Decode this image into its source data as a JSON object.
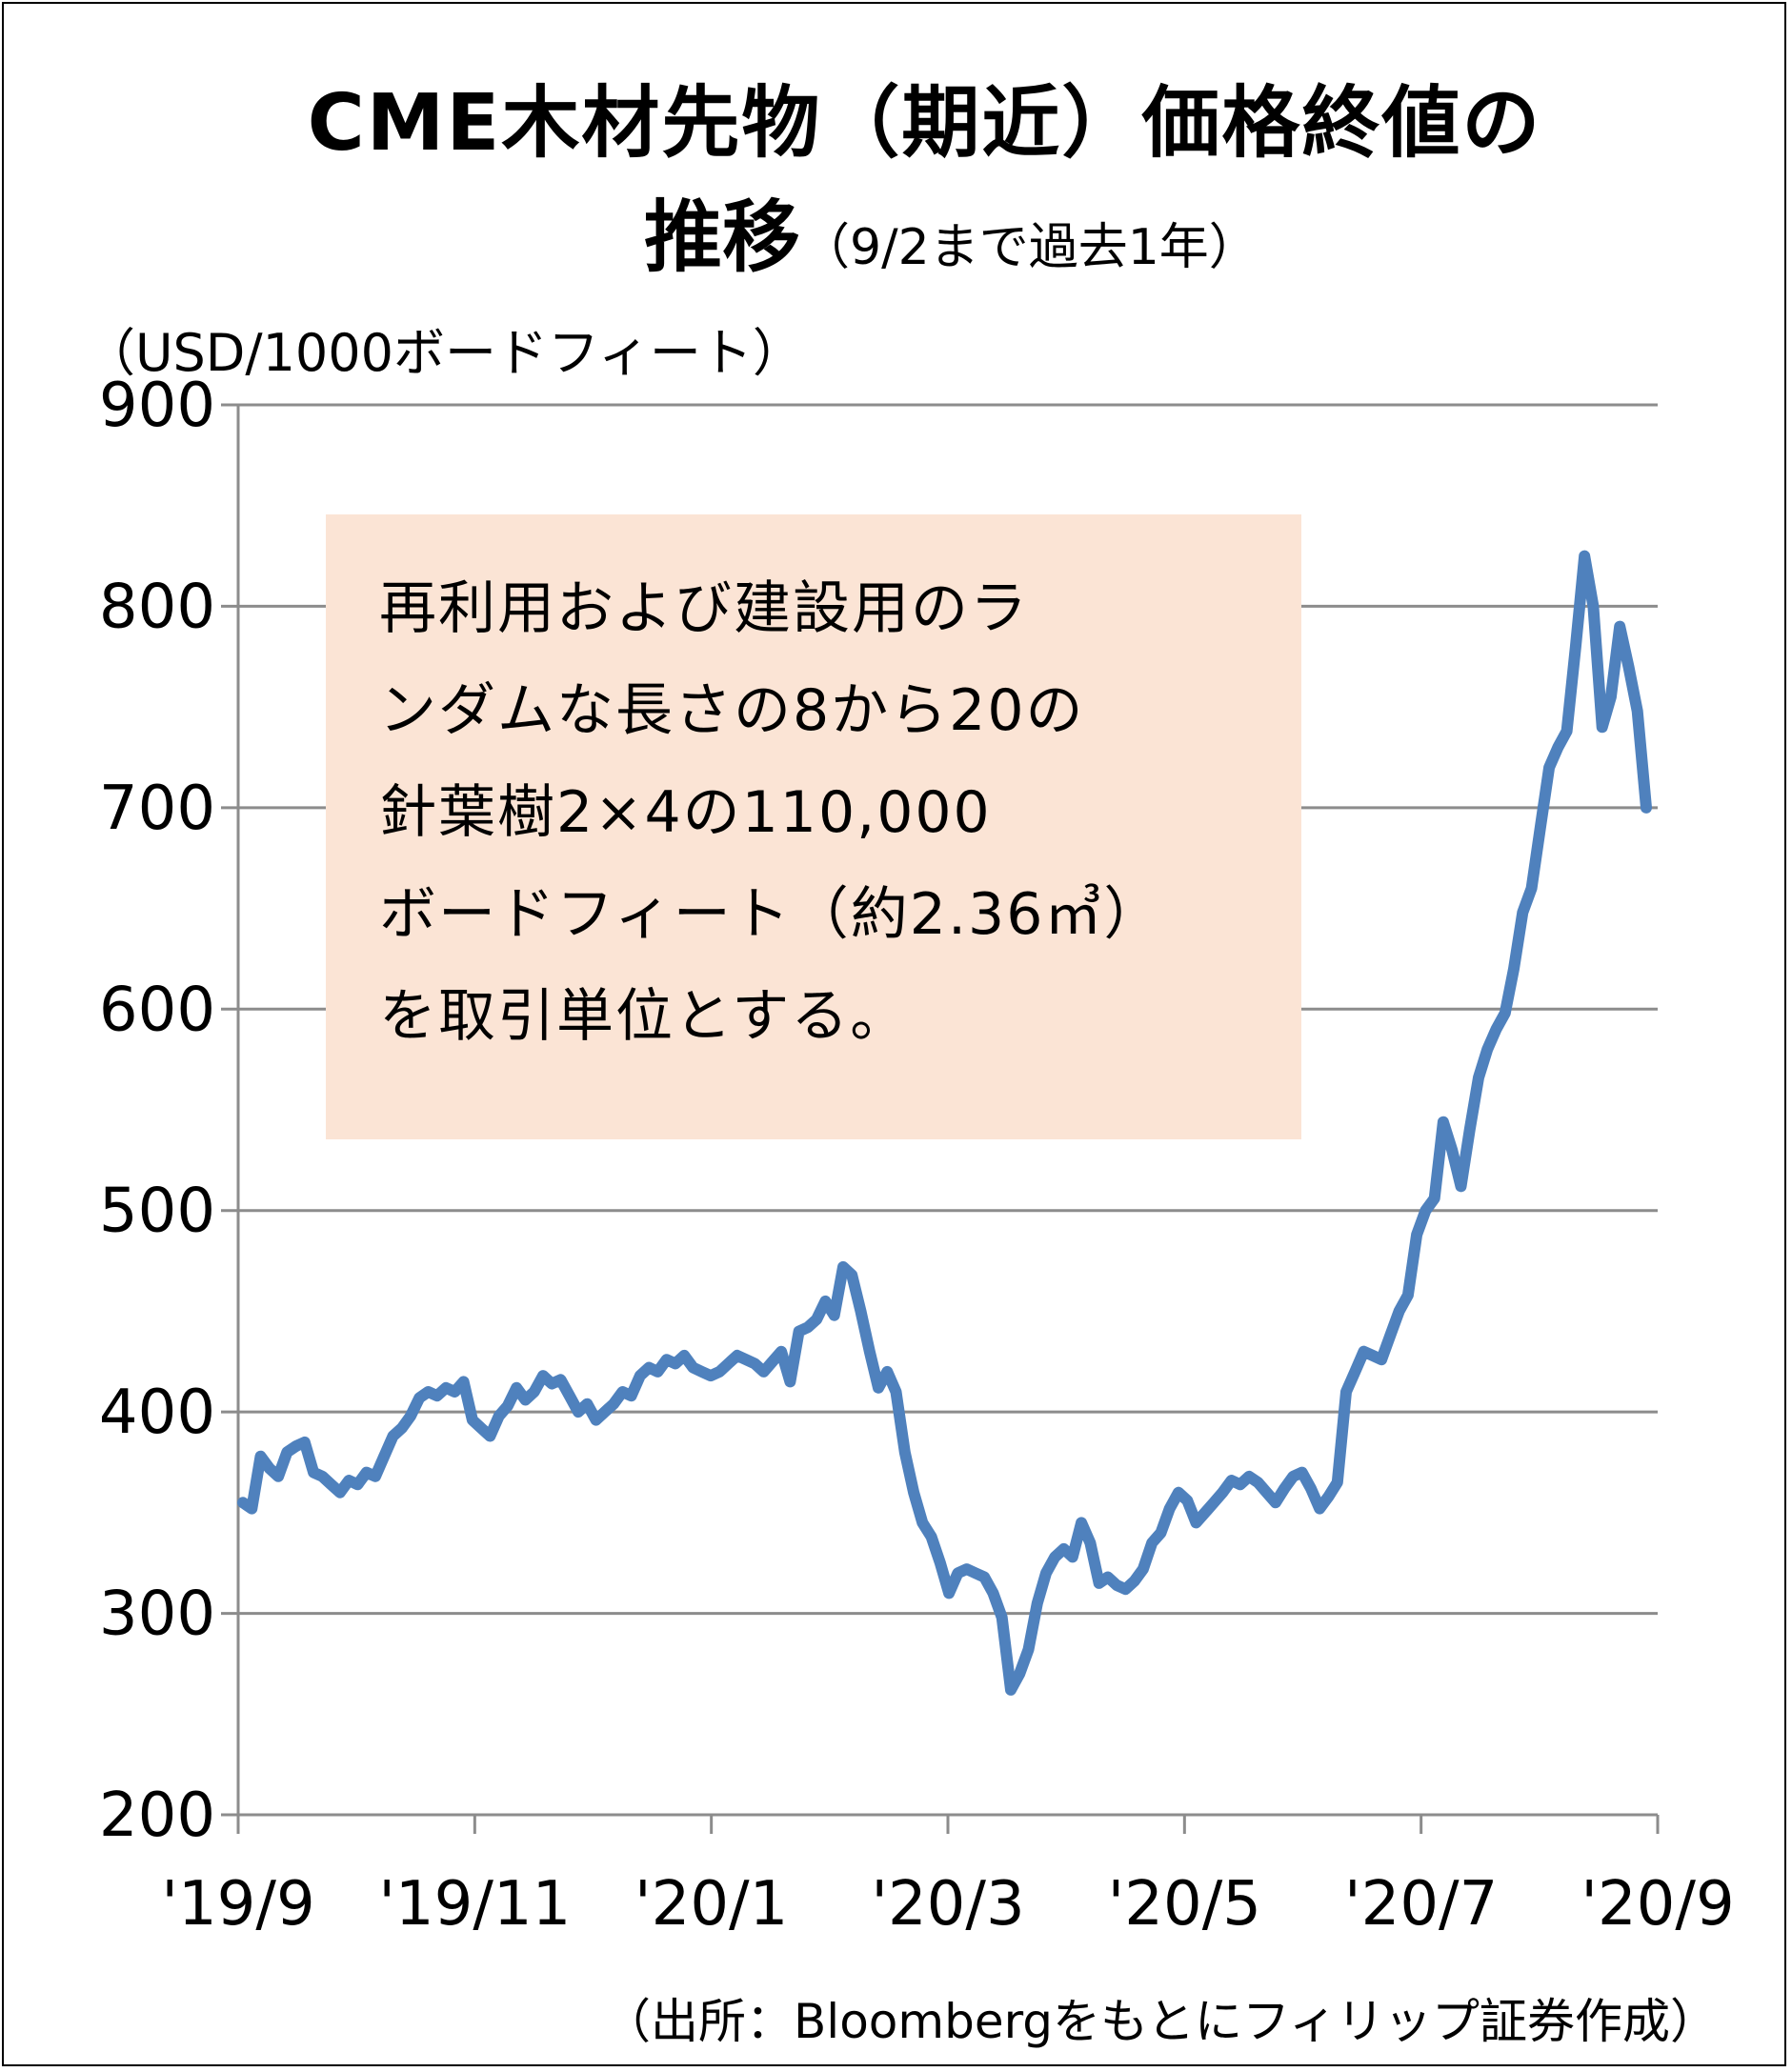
{
  "chart_data": {
    "type": "line",
    "title": "CME木材先物（期近）価格終値の",
    "title_line2": "推移",
    "subtitle": "（9/2まで過去1年）",
    "ylabel": "（USD/1000ボードフィート）",
    "ylim": [
      200,
      900
    ],
    "yticks": [
      "900",
      "800",
      "700",
      "600",
      "500",
      "400",
      "300",
      "200"
    ],
    "xticks": [
      "'19/9",
      "'19/11",
      "'20/1",
      "'20/3",
      "'20/5",
      "'20/7",
      "'20/9"
    ],
    "grid": true,
    "legend": "none",
    "series": [
      {
        "color": "#4f81bd",
        "values": [
          355,
          352,
          378,
          372,
          368,
          380,
          383,
          385,
          370,
          368,
          364,
          360,
          366,
          364,
          370,
          368,
          378,
          388,
          392,
          398,
          407,
          410,
          408,
          412,
          410,
          415,
          396,
          392,
          388,
          398,
          403,
          412,
          406,
          410,
          418,
          414,
          416,
          408,
          400,
          404,
          396,
          400,
          404,
          410,
          408,
          418,
          422,
          420,
          426,
          424,
          428,
          422,
          420,
          418,
          420,
          424,
          428,
          426,
          424,
          420,
          425,
          430,
          415,
          440,
          442,
          446,
          455,
          448,
          472,
          468,
          450,
          430,
          412,
          420,
          410,
          380,
          360,
          345,
          338,
          325,
          310,
          320,
          322,
          320,
          318,
          310,
          298,
          262,
          270,
          282,
          305,
          320,
          328,
          332,
          328,
          345,
          335,
          315,
          318,
          314,
          312,
          316,
          322,
          335,
          340,
          352,
          360,
          356,
          345,
          350,
          355,
          360,
          366,
          364,
          368,
          365,
          360,
          355,
          362,
          368,
          370,
          362,
          352,
          358,
          365,
          410,
          420,
          430,
          428,
          426,
          438,
          450,
          458,
          488,
          500,
          506,
          544,
          530,
          512,
          540,
          566,
          580,
          590,
          598,
          620,
          648,
          660,
          690,
          720,
          730,
          738,
          780,
          825,
          800,
          740,
          755,
          790,
          770,
          748,
          700
        ]
      }
    ],
    "annotation_lines": [
      "再利用および建設用のラ",
      "ンダムな長さの8から20の",
      "針葉樹2×4の110,000",
      "ボードフィート（約2.36㎥）",
      "を取引単位とする。"
    ]
  },
  "source": "（出所：Bloombergをもとにフィリップ証券作成）"
}
